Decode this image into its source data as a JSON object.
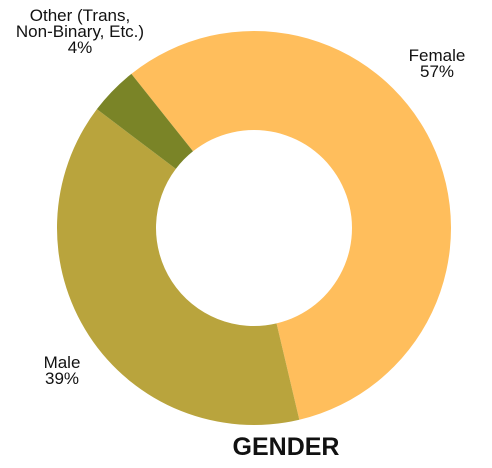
{
  "chart_data": {
    "type": "donut",
    "title": "GENDER",
    "categories": [
      "Female",
      "Male",
      "Other (Trans, Non-Binary, Etc.)"
    ],
    "values": [
      57,
      39,
      4
    ],
    "value_labels": [
      "57%",
      "39%",
      "4%"
    ],
    "colors": [
      "#ffbe5c",
      "#b9a43d",
      "#7a8427"
    ]
  }
}
